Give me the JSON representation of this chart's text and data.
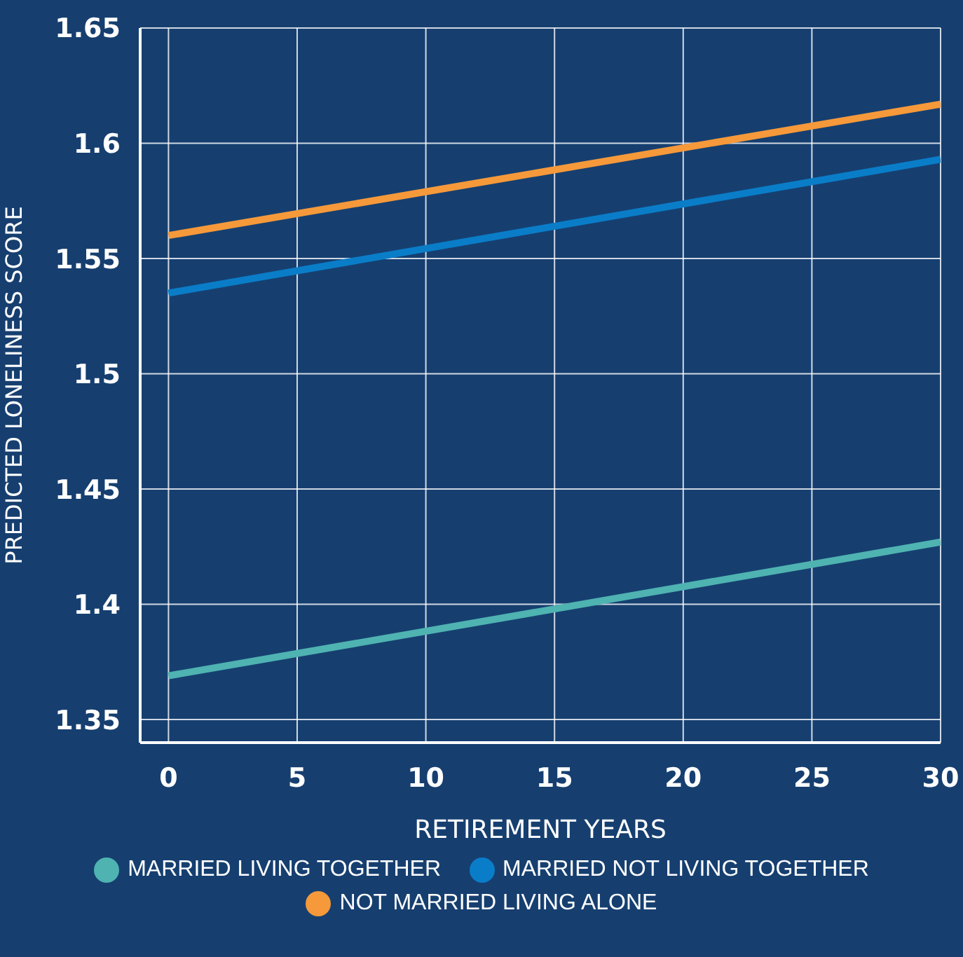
{
  "chart_data": {
    "type": "line",
    "xlabel": "RETIREMENT YEARS",
    "ylabel": "PREDICTED LONELINESS SCORE",
    "x": [
      0,
      30
    ],
    "series": [
      {
        "name": "MARRIED LIVING TOGETHER",
        "color": "#4fb3b1",
        "values": [
          1.369,
          1.427
        ]
      },
      {
        "name": "MARRIED NOT LIVING TOGETHER",
        "color": "#0a7dc8",
        "values": [
          1.535,
          1.593
        ]
      },
      {
        "name": "NOT MARRIED LIVING ALONE",
        "color": "#f5993a",
        "values": [
          1.56,
          1.617
        ]
      }
    ],
    "xlim": [
      -1.1,
      30
    ],
    "xticks": [
      0,
      5,
      10,
      15,
      20,
      25,
      30
    ],
    "ylim": [
      1.34,
      1.65
    ],
    "yticks": [
      1.35,
      1.4,
      1.45,
      1.5,
      1.55,
      1.6,
      1.65
    ],
    "grid": true,
    "legend": "bottom",
    "marker": "none",
    "line_style": "solid"
  }
}
